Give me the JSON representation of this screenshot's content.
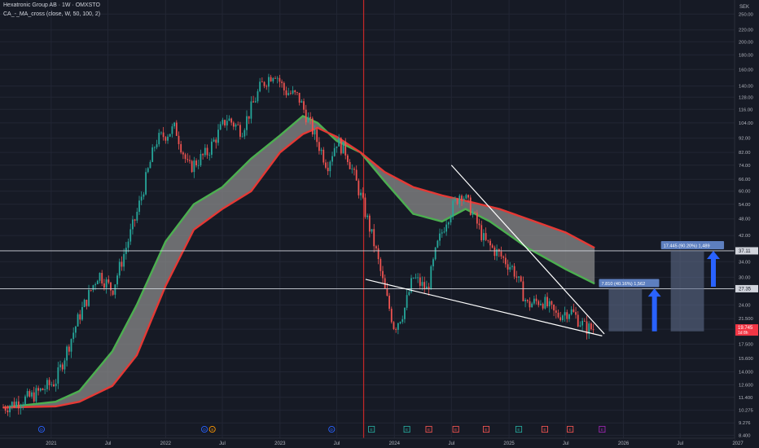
{
  "header": {
    "title": "Hexatronic Group AB · 1W · OMXSTO",
    "indicator": "CA_-_MA_cross (close, W, 50, 100, 2)"
  },
  "price_axis": {
    "currency": "SEK",
    "last_price": "19.745",
    "countdown": "1d 8h"
  },
  "colors": {
    "background": "#161a25",
    "up_candle": "#26a69a",
    "down_candle": "#ef5350",
    "ma_fast": "#4caf50",
    "ma_slow": "#e53935",
    "ma_fill": "#8a8a8a",
    "target_box": "#5d6b88",
    "target_label": "#5d7fbf",
    "arrow": "#2962ff"
  },
  "chart_data": {
    "type": "candlestick",
    "y_scale": "log",
    "ylim": [
      8.2,
      280
    ],
    "xlim": [
      "2020-08",
      "2027-01"
    ],
    "y_ticks": [
      8.4,
      9.276,
      10.275,
      11.4,
      12.6,
      14.0,
      15.6,
      17.5,
      19.745,
      21.5,
      24.0,
      27.35,
      30.0,
      34.0,
      37.11,
      42.0,
      48.0,
      54.0,
      60.0,
      66.0,
      74.0,
      82.0,
      92.0,
      104.0,
      116.0,
      128.0,
      140.0,
      160.0,
      180.0,
      200.0,
      220.0,
      250.0
    ],
    "y_tick_labels": [
      "8.400",
      "9.276",
      "10.275",
      "11.400",
      "12.600",
      "14.000",
      "15.600",
      "17.500",
      "19.745",
      "21.500",
      "24.00",
      "27.35",
      "30.00",
      "34.00",
      "37.11",
      "42.00",
      "48.00",
      "54.00",
      "60.00",
      "66.00",
      "74.00",
      "82.00",
      "92.00",
      "104.00",
      "116.00",
      "128.00",
      "140.00",
      "160.00",
      "180.00",
      "200.00",
      "220.00",
      "250.00"
    ],
    "x_ticks": [
      "2020-07",
      "2021-01",
      "2021-07",
      "2022-01",
      "2022-07",
      "2023-01",
      "2023-07",
      "2024-01",
      "2024-07",
      "2025-01",
      "2025-07",
      "2026-01",
      "2026-07",
      "2027-01"
    ],
    "x_tick_labels": [
      "Jul",
      "2021",
      "Jul",
      "2022",
      "Jul",
      "2023",
      "Jul",
      "2024",
      "Jul",
      "2025",
      "Jul",
      "2026",
      "Jul",
      "2027"
    ],
    "price_path": [
      {
        "t": "2020-08-01",
        "p": 10.5
      },
      {
        "t": "2020-11-01",
        "p": 11.5
      },
      {
        "t": "2021-01-15",
        "p": 13.0
      },
      {
        "t": "2021-04-01",
        "p": 22.0
      },
      {
        "t": "2021-06-01",
        "p": 31.0
      },
      {
        "t": "2021-07-15",
        "p": 27.0
      },
      {
        "t": "2021-10-01",
        "p": 50.0
      },
      {
        "t": "2021-12-01",
        "p": 90.0
      },
      {
        "t": "2022-02-01",
        "p": 100.0
      },
      {
        "t": "2022-03-15",
        "p": 72.0
      },
      {
        "t": "2022-05-15",
        "p": 82.0
      },
      {
        "t": "2022-07-15",
        "p": 108.0
      },
      {
        "t": "2022-09-01",
        "p": 98.0
      },
      {
        "t": "2022-11-01",
        "p": 140.0
      },
      {
        "t": "2022-12-15",
        "p": 158.0
      },
      {
        "t": "2023-01-15",
        "p": 135.0
      },
      {
        "t": "2023-03-01",
        "p": 128.0
      },
      {
        "t": "2023-04-15",
        "p": 98.0
      },
      {
        "t": "2023-06-01",
        "p": 74.0
      },
      {
        "t": "2023-07-01",
        "p": 90.0
      },
      {
        "t": "2023-08-01",
        "p": 82.0
      },
      {
        "t": "2023-09-15",
        "p": 58.0
      },
      {
        "t": "2023-11-01",
        "p": 38.0
      },
      {
        "t": "2023-12-01",
        "p": 27.0
      },
      {
        "t": "2024-01-01",
        "p": 20.0
      },
      {
        "t": "2024-02-01",
        "p": 23.0
      },
      {
        "t": "2024-03-01",
        "p": 30.0
      },
      {
        "t": "2024-04-15",
        "p": 27.0
      },
      {
        "t": "2024-05-15",
        "p": 38.0
      },
      {
        "t": "2024-06-15",
        "p": 48.0
      },
      {
        "t": "2024-08-01",
        "p": 60.0
      },
      {
        "t": "2024-09-01",
        "p": 52.0
      },
      {
        "t": "2024-10-15",
        "p": 40.0
      },
      {
        "t": "2024-12-01",
        "p": 36.0
      },
      {
        "t": "2025-01-15",
        "p": 32.0
      },
      {
        "t": "2025-03-01",
        "p": 24.0
      },
      {
        "t": "2025-04-15",
        "p": 25.0
      },
      {
        "t": "2025-06-01",
        "p": 22.0
      },
      {
        "t": "2025-07-15",
        "p": 23.0
      },
      {
        "t": "2025-09-01",
        "p": 20.0
      },
      {
        "t": "2025-10-01",
        "p": 19.745
      }
    ],
    "ma_fast": [
      {
        "t": "2020-08-01",
        "v": 10.5
      },
      {
        "t": "2021-01-15",
        "v": 11.0
      },
      {
        "t": "2021-04-01",
        "v": 12.0
      },
      {
        "t": "2021-07-15",
        "v": 16.5
      },
      {
        "t": "2021-10-01",
        "v": 24.0
      },
      {
        "t": "2022-01-01",
        "v": 40.0
      },
      {
        "t": "2022-04-01",
        "v": 54.0
      },
      {
        "t": "2022-07-01",
        "v": 62.0
      },
      {
        "t": "2022-10-01",
        "v": 78.0
      },
      {
        "t": "2023-01-01",
        "v": 94.0
      },
      {
        "t": "2023-03-15",
        "v": 110.0
      },
      {
        "t": "2023-05-01",
        "v": 104.0
      },
      {
        "t": "2023-07-01",
        "v": 90.0
      },
      {
        "t": "2023-09-15",
        "v": 82.0
      },
      {
        "t": "2023-12-01",
        "v": 65.0
      },
      {
        "t": "2024-03-01",
        "v": 50.0
      },
      {
        "t": "2024-06-01",
        "v": 47.0
      },
      {
        "t": "2024-08-15",
        "v": 52.0
      },
      {
        "t": "2024-11-01",
        "v": 47.0
      },
      {
        "t": "2025-03-01",
        "v": 38.0
      },
      {
        "t": "2025-07-01",
        "v": 32.0
      },
      {
        "t": "2025-10-01",
        "v": 28.5
      }
    ],
    "ma_slow": [
      {
        "t": "2020-08-01",
        "v": 10.5
      },
      {
        "t": "2021-01-15",
        "v": 10.6
      },
      {
        "t": "2021-04-01",
        "v": 11.0
      },
      {
        "t": "2021-07-15",
        "v": 12.5
      },
      {
        "t": "2021-10-01",
        "v": 16.0
      },
      {
        "t": "2022-01-01",
        "v": 28.0
      },
      {
        "t": "2022-04-01",
        "v": 44.0
      },
      {
        "t": "2022-07-01",
        "v": 52.0
      },
      {
        "t": "2022-10-01",
        "v": 60.0
      },
      {
        "t": "2023-01-01",
        "v": 82.0
      },
      {
        "t": "2023-03-15",
        "v": 95.0
      },
      {
        "t": "2023-05-01",
        "v": 100.0
      },
      {
        "t": "2023-07-01",
        "v": 93.0
      },
      {
        "t": "2023-09-15",
        "v": 82.0
      },
      {
        "t": "2023-12-01",
        "v": 70.0
      },
      {
        "t": "2024-03-01",
        "v": 62.0
      },
      {
        "t": "2024-06-01",
        "v": 58.0
      },
      {
        "t": "2024-09-01",
        "v": 55.0
      },
      {
        "t": "2024-12-01",
        "v": 52.0
      },
      {
        "t": "2025-03-01",
        "v": 48.0
      },
      {
        "t": "2025-07-01",
        "v": 43.0
      },
      {
        "t": "2025-10-01",
        "v": 38.0
      }
    ],
    "vertical_lines": [
      {
        "date": "2020-07-20",
        "color": "#1b5e20"
      },
      {
        "date": "2023-09-25",
        "color": "#c62828"
      }
    ],
    "horizontal_lines": [
      37.11,
      27.35
    ],
    "trendlines": [
      {
        "from": {
          "t": "2024-07-01",
          "p": 74.0
        },
        "to": {
          "t": "2025-11-01",
          "p": 19.0
        }
      },
      {
        "from": {
          "t": "2023-10-01",
          "p": 29.5
        },
        "to": {
          "t": "2025-10-25",
          "p": 18.7
        }
      }
    ],
    "targets": [
      {
        "label": "7.810 (40.16%) 1,562",
        "from": "2025-11-15",
        "to": "2026-03-01",
        "low": 19.4,
        "high": 27.35
      },
      {
        "label": "17.445 (90.20%) 1,489",
        "from": "2026-06-01",
        "to": "2026-09-15",
        "low": 19.4,
        "high": 37.11
      }
    ],
    "arrows": [
      {
        "date": "2026-04-10",
        "low": 19.4,
        "high": 27.4
      },
      {
        "date": "2026-10-15",
        "low": 27.8,
        "high": 37.1
      }
    ],
    "events": [
      {
        "date": "2020-12-01",
        "tag": "D",
        "color": "#2962ff"
      },
      {
        "date": "2022-05-05",
        "tag": "D",
        "color": "#2962ff"
      },
      {
        "date": "2022-05-30",
        "tag": "S",
        "color": "#ff9800"
      },
      {
        "date": "2023-06-15",
        "tag": "D",
        "color": "#2962ff"
      },
      {
        "date": "2023-10-20",
        "tag": "E",
        "color": "#26a69a"
      },
      {
        "date": "2024-02-10",
        "tag": "E",
        "color": "#26a69a"
      },
      {
        "date": "2024-04-20",
        "tag": "E",
        "color": "#ef5350"
      },
      {
        "date": "2024-07-15",
        "tag": "E",
        "color": "#ef5350"
      },
      {
        "date": "2024-10-20",
        "tag": "E",
        "color": "#ef5350"
      },
      {
        "date": "2025-02-01",
        "tag": "E",
        "color": "#26a69a"
      },
      {
        "date": "2025-04-25",
        "tag": "E",
        "color": "#ef5350"
      },
      {
        "date": "2025-07-15",
        "tag": "E",
        "color": "#ef5350"
      },
      {
        "date": "2025-10-25",
        "tag": "E",
        "color": "#9c27b0"
      }
    ]
  }
}
